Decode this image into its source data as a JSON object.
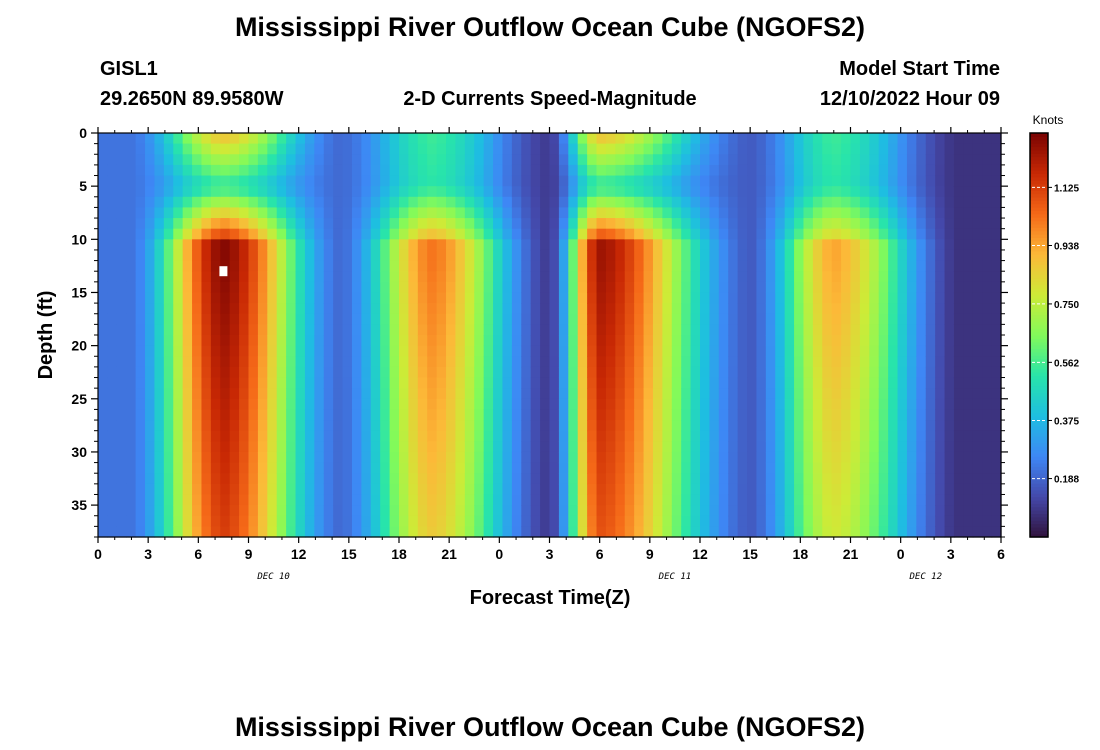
{
  "header": {
    "title": "Mississippi River Outflow Ocean Cube (NGOFS2)",
    "station": "GISL1",
    "location": "29.2650N  89.9580W",
    "subtitle": "2-D Currents Speed-Magnitude",
    "model_start_label": "Model Start Time",
    "model_start_value": "12/10/2022 Hour 09"
  },
  "footer": {
    "title": "Mississippi River Outflow Ocean Cube (NGOFS2)"
  },
  "chart_data": {
    "type": "heatmap",
    "xlabel": "Forecast Time(Z)",
    "ylabel": "Depth (ft)",
    "x_range_hours": [
      0,
      54
    ],
    "y_range": [
      0,
      38
    ],
    "y_inverted": true,
    "x_tick_labels": [
      "0",
      "3",
      "6",
      "9",
      "12",
      "15",
      "18",
      "21",
      "0",
      "3",
      "6",
      "9",
      "12",
      "15",
      "18",
      "21",
      "0",
      "3",
      "6"
    ],
    "y_tick_labels": [
      "0",
      "5",
      "10",
      "15",
      "20",
      "25",
      "30",
      "35"
    ],
    "y_ticks": [
      0,
      5,
      10,
      15,
      20,
      25,
      30,
      35
    ],
    "date_labels": [
      {
        "hour": 10.5,
        "text": "DEC 10"
      },
      {
        "hour": 34.5,
        "text": "DEC 11"
      },
      {
        "hour": 49.5,
        "text": "DEC 12"
      }
    ],
    "colorbar": {
      "title": "Knots",
      "range": [
        0,
        1.3
      ],
      "ticks": [
        0.188,
        0.375,
        0.562,
        0.75,
        0.938,
        1.125
      ],
      "tick_labels": [
        "0.188",
        "0.375",
        "0.562",
        "0.750",
        "0.938",
        "1.125"
      ],
      "colormap": "turbo"
    },
    "field": {
      "description_hidden": true,
      "peaks": [
        {
          "hour": 7.5,
          "max": 1.28,
          "surface": 0.9
        },
        {
          "hour": 20.0,
          "max": 1.02,
          "surface": 0.55
        },
        {
          "hour": 30.0,
          "max": 1.24,
          "surface": 0.9
        },
        {
          "hour": 44.0,
          "max": 0.94,
          "surface": 0.55
        }
      ],
      "minima": [
        {
          "hour": 2.0,
          "value": 0.22
        },
        {
          "hour": 14.5,
          "value": 0.2
        },
        {
          "hour": 27.0,
          "value": 0.1
        },
        {
          "hour": 39.0,
          "value": 0.17
        },
        {
          "hour": 51.5,
          "value": 0.08
        }
      ]
    },
    "marker": {
      "hour": 7.5,
      "depth": 13
    }
  }
}
